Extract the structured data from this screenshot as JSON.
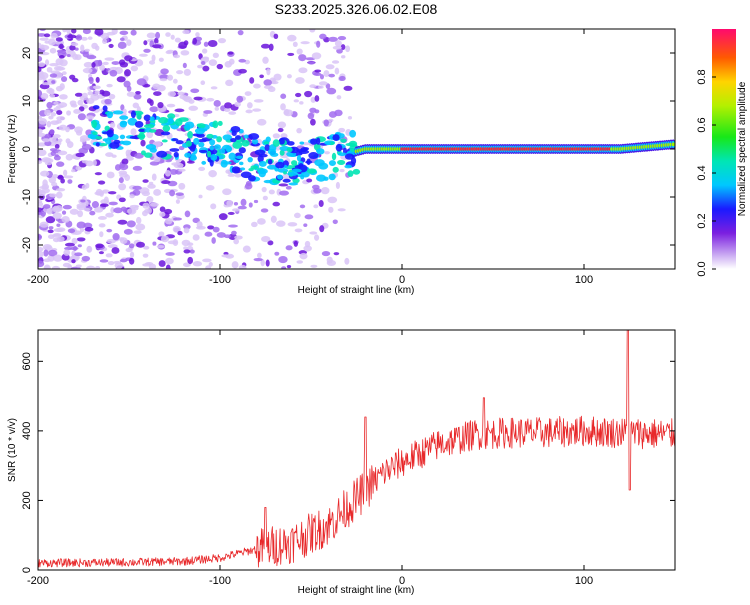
{
  "chart_data": [
    {
      "type": "heatmap",
      "title": "S233.2025.326.06.02.E08",
      "xlabel": "Height of straight line (km)",
      "ylabel": "Frequency (Hz)",
      "xlim": [
        -200,
        150
      ],
      "ylim": [
        -25,
        25
      ],
      "xticks": [
        -200,
        -100,
        0,
        100
      ],
      "xtick_labels": [
        "-200",
        "-100",
        "0",
        "100"
      ],
      "yticks": [
        -20,
        -10,
        0,
        10,
        20
      ],
      "ytick_labels": [
        "-20",
        "-10",
        "0",
        "10",
        "20"
      ],
      "colorbar": {
        "label": "Normalized spectral amplitude",
        "range": [
          0,
          1
        ],
        "ticks": [
          0.0,
          0.2,
          0.4,
          0.6,
          0.8
        ],
        "tick_labels": [
          "0.0",
          "0.2",
          "0.4",
          "0.6",
          "0.8"
        ]
      },
      "description_points": {
        "noise_region_x": [
          -200,
          -30
        ],
        "ridge": [
          {
            "x": -120,
            "f": 2
          },
          {
            "x": -100,
            "f": 1
          },
          {
            "x": -80,
            "f": -2
          },
          {
            "x": -60,
            "f": -3
          },
          {
            "x": -40,
            "f": -2
          },
          {
            "x": -30,
            "f": -1
          },
          {
            "x": -20,
            "f": 0
          },
          {
            "x": 0,
            "f": 0
          },
          {
            "x": 50,
            "f": 0
          },
          {
            "x": 100,
            "f": 0
          },
          {
            "x": 120,
            "f": 0
          },
          {
            "x": 150,
            "f": 1
          }
        ]
      }
    },
    {
      "type": "line",
      "xlabel": "Height of straight line (km)",
      "ylabel": "SNR (10 * v/v)",
      "xlim": [
        -200,
        150
      ],
      "ylim": [
        0,
        690
      ],
      "xticks": [
        -200,
        -100,
        0,
        100
      ],
      "xtick_labels": [
        "-200",
        "-100",
        "0",
        "100"
      ],
      "yticks": [
        0,
        200,
        400,
        600
      ],
      "ytick_labels": [
        "0",
        "200",
        "400",
        "600"
      ],
      "line_color": "#e8282a",
      "trend": [
        {
          "x": -200,
          "y": 20
        },
        {
          "x": -150,
          "y": 22
        },
        {
          "x": -120,
          "y": 25
        },
        {
          "x": -100,
          "y": 35
        },
        {
          "x": -80,
          "y": 60
        },
        {
          "x": -60,
          "y": 80
        },
        {
          "x": -40,
          "y": 130
        },
        {
          "x": -30,
          "y": 180
        },
        {
          "x": -20,
          "y": 230
        },
        {
          "x": -10,
          "y": 280
        },
        {
          "x": 0,
          "y": 310
        },
        {
          "x": 20,
          "y": 360
        },
        {
          "x": 40,
          "y": 390
        },
        {
          "x": 60,
          "y": 395
        },
        {
          "x": 80,
          "y": 395
        },
        {
          "x": 100,
          "y": 400
        },
        {
          "x": 120,
          "y": 395
        },
        {
          "x": 150,
          "y": 390
        }
      ],
      "spikes": [
        {
          "x": -75,
          "y": 180
        },
        {
          "x": -20,
          "y": 440
        },
        {
          "x": 45,
          "y": 495
        },
        {
          "x": 124,
          "y": 690
        },
        {
          "x": 125,
          "y": 230
        }
      ]
    }
  ]
}
